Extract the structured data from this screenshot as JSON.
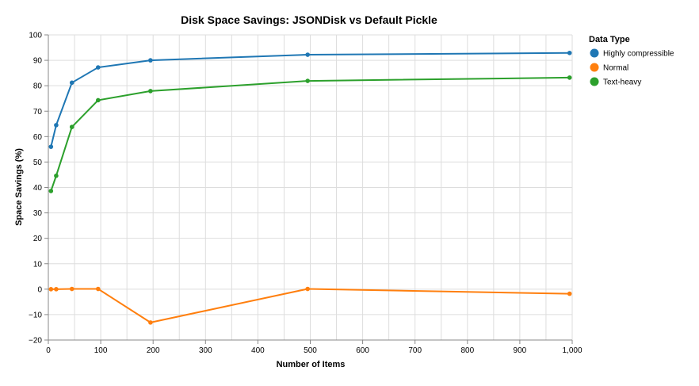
{
  "chart_data": {
    "type": "line",
    "title": "Disk Space Savings: JSONDisk vs Default Pickle",
    "xlabel": "Number of Items",
    "ylabel": "Space Savings (%)",
    "xlim": [
      0,
      1000
    ],
    "ylim": [
      -20,
      100
    ],
    "x_ticks": [
      0,
      100,
      200,
      300,
      400,
      500,
      600,
      700,
      800,
      900,
      1000
    ],
    "x_tick_labels": [
      "0",
      "100",
      "200",
      "300",
      "400",
      "500",
      "600",
      "700",
      "800",
      "900",
      "1,000"
    ],
    "y_ticks": [
      -20,
      -10,
      0,
      10,
      20,
      30,
      40,
      50,
      60,
      70,
      80,
      90,
      100
    ],
    "y_tick_labels": [
      "−20",
      "−10",
      "0",
      "10",
      "20",
      "30",
      "40",
      "50",
      "60",
      "70",
      "80",
      "90",
      "100"
    ],
    "grid": true,
    "legend": {
      "title": "Data Type",
      "position": "right"
    },
    "x": [
      5,
      15,
      45,
      95,
      195,
      495,
      995
    ],
    "series": [
      {
        "name": "Highly compressible",
        "color": "#1f77b4",
        "values": [
          56.0,
          64.5,
          81.2,
          87.2,
          90.0,
          92.2,
          92.9
        ]
      },
      {
        "name": "Normal",
        "color": "#ff7f0e",
        "values": [
          0.0,
          0.0,
          0.1,
          0.1,
          -13.1,
          0.1,
          -1.8
        ]
      },
      {
        "name": "Text-heavy",
        "color": "#2ca02c",
        "values": [
          38.6,
          44.6,
          63.8,
          74.3,
          77.9,
          81.9,
          83.2
        ]
      }
    ]
  }
}
